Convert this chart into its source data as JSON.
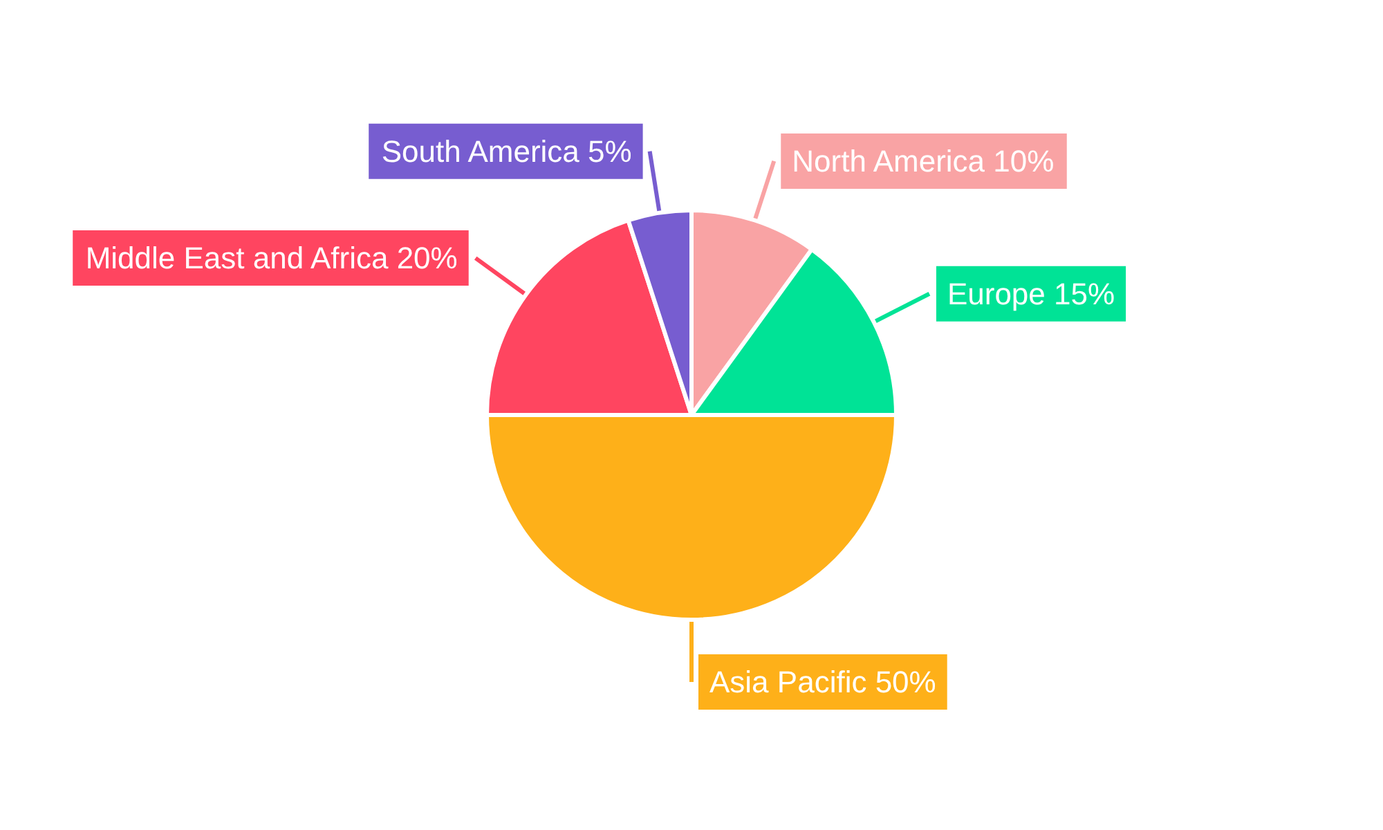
{
  "chart_data": {
    "type": "pie",
    "categories": [
      "North America",
      "Europe",
      "Asia Pacific",
      "Middle East and Africa",
      "South America"
    ],
    "values": [
      10,
      15,
      50,
      20,
      5
    ],
    "value_labels": [
      "10%",
      "15%",
      "50%",
      "20%",
      "5%"
    ],
    "colors": [
      "#f9a3a4",
      "#00e396",
      "#feb019",
      "#ff4560",
      "#775dd0"
    ],
    "legend": false
  }
}
